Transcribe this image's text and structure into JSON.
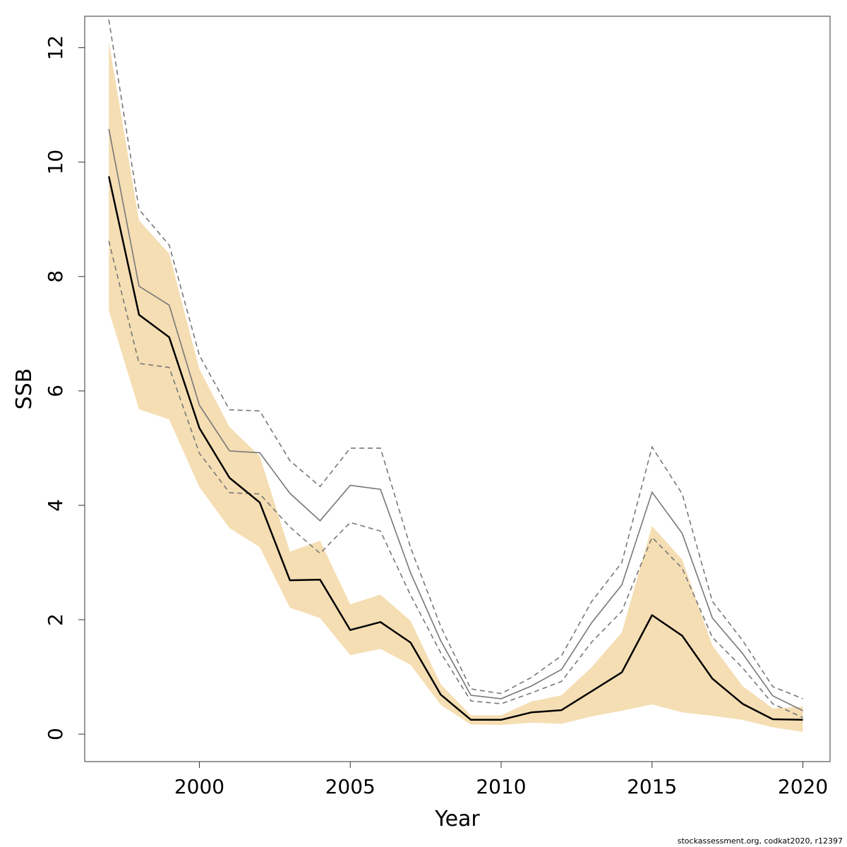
{
  "chart_data": {
    "type": "line",
    "xlabel": "Year",
    "ylabel": "SSB",
    "xlim": [
      1996.2,
      2020.9
    ],
    "ylim": [
      -0.48,
      12.55
    ],
    "x_ticks": [
      2000,
      2005,
      2010,
      2015,
      2020
    ],
    "y_ticks": [
      0,
      2,
      4,
      6,
      8,
      10,
      12
    ],
    "grid": false,
    "legend": "none",
    "colors": {
      "band": "#f5deb3",
      "main_line": "#000000",
      "comparison_line": "#777777",
      "comparison_ci": "#777777",
      "axis": "#333333"
    },
    "x": [
      1997,
      1998,
      1999,
      2000,
      2001,
      2002,
      2003,
      2004,
      2005,
      2006,
      2007,
      2008,
      2009,
      2010,
      2011,
      2012,
      2013,
      2014,
      2015,
      2016,
      2017,
      2018,
      2019,
      2020
    ],
    "series": [
      {
        "role": "main_estimate",
        "values": [
          9.75,
          7.33,
          6.94,
          5.35,
          4.48,
          4.05,
          2.69,
          2.7,
          1.82,
          1.96,
          1.6,
          0.69,
          0.25,
          0.25,
          0.38,
          0.42,
          0.75,
          1.08,
          2.08,
          1.72,
          0.97,
          0.53,
          0.26,
          0.25
        ]
      },
      {
        "role": "main_ci_lower",
        "values": [
          7.4,
          5.68,
          5.5,
          4.32,
          3.6,
          3.27,
          2.21,
          2.03,
          1.38,
          1.49,
          1.21,
          0.51,
          0.17,
          0.16,
          0.2,
          0.18,
          0.31,
          0.41,
          0.52,
          0.38,
          0.32,
          0.25,
          0.12,
          0.04
        ]
      },
      {
        "role": "main_ci_upper",
        "values": [
          12.1,
          8.98,
          8.4,
          6.38,
          5.37,
          4.86,
          3.19,
          3.38,
          2.27,
          2.44,
          1.98,
          0.87,
          0.33,
          0.33,
          0.57,
          0.68,
          1.17,
          1.78,
          3.64,
          3.05,
          1.55,
          0.84,
          0.45,
          0.48
        ]
      },
      {
        "role": "comparison_estimate",
        "values": [
          10.58,
          7.83,
          7.5,
          5.75,
          4.95,
          4.92,
          4.21,
          3.73,
          4.35,
          4.28,
          2.82,
          1.63,
          0.68,
          0.62,
          0.84,
          1.13,
          1.95,
          2.61,
          4.23,
          3.51,
          2.03,
          1.41,
          0.67,
          0.41
        ]
      },
      {
        "role": "comparison_ci_lower",
        "values": [
          8.62,
          6.48,
          6.41,
          4.91,
          4.22,
          4.2,
          3.62,
          3.16,
          3.7,
          3.55,
          2.43,
          1.42,
          0.58,
          0.53,
          0.72,
          0.92,
          1.61,
          2.15,
          3.44,
          2.9,
          1.69,
          1.16,
          0.53,
          0.29
        ]
      },
      {
        "role": "comparison_ci_upper",
        "values": [
          12.49,
          9.17,
          8.55,
          6.62,
          5.67,
          5.65,
          4.78,
          4.33,
          5.0,
          5.0,
          3.26,
          1.88,
          0.79,
          0.71,
          0.99,
          1.37,
          2.32,
          3.0,
          5.02,
          4.2,
          2.32,
          1.64,
          0.83,
          0.62
        ]
      }
    ],
    "footer": "stockassessment.org, codkat2020, r12397"
  }
}
